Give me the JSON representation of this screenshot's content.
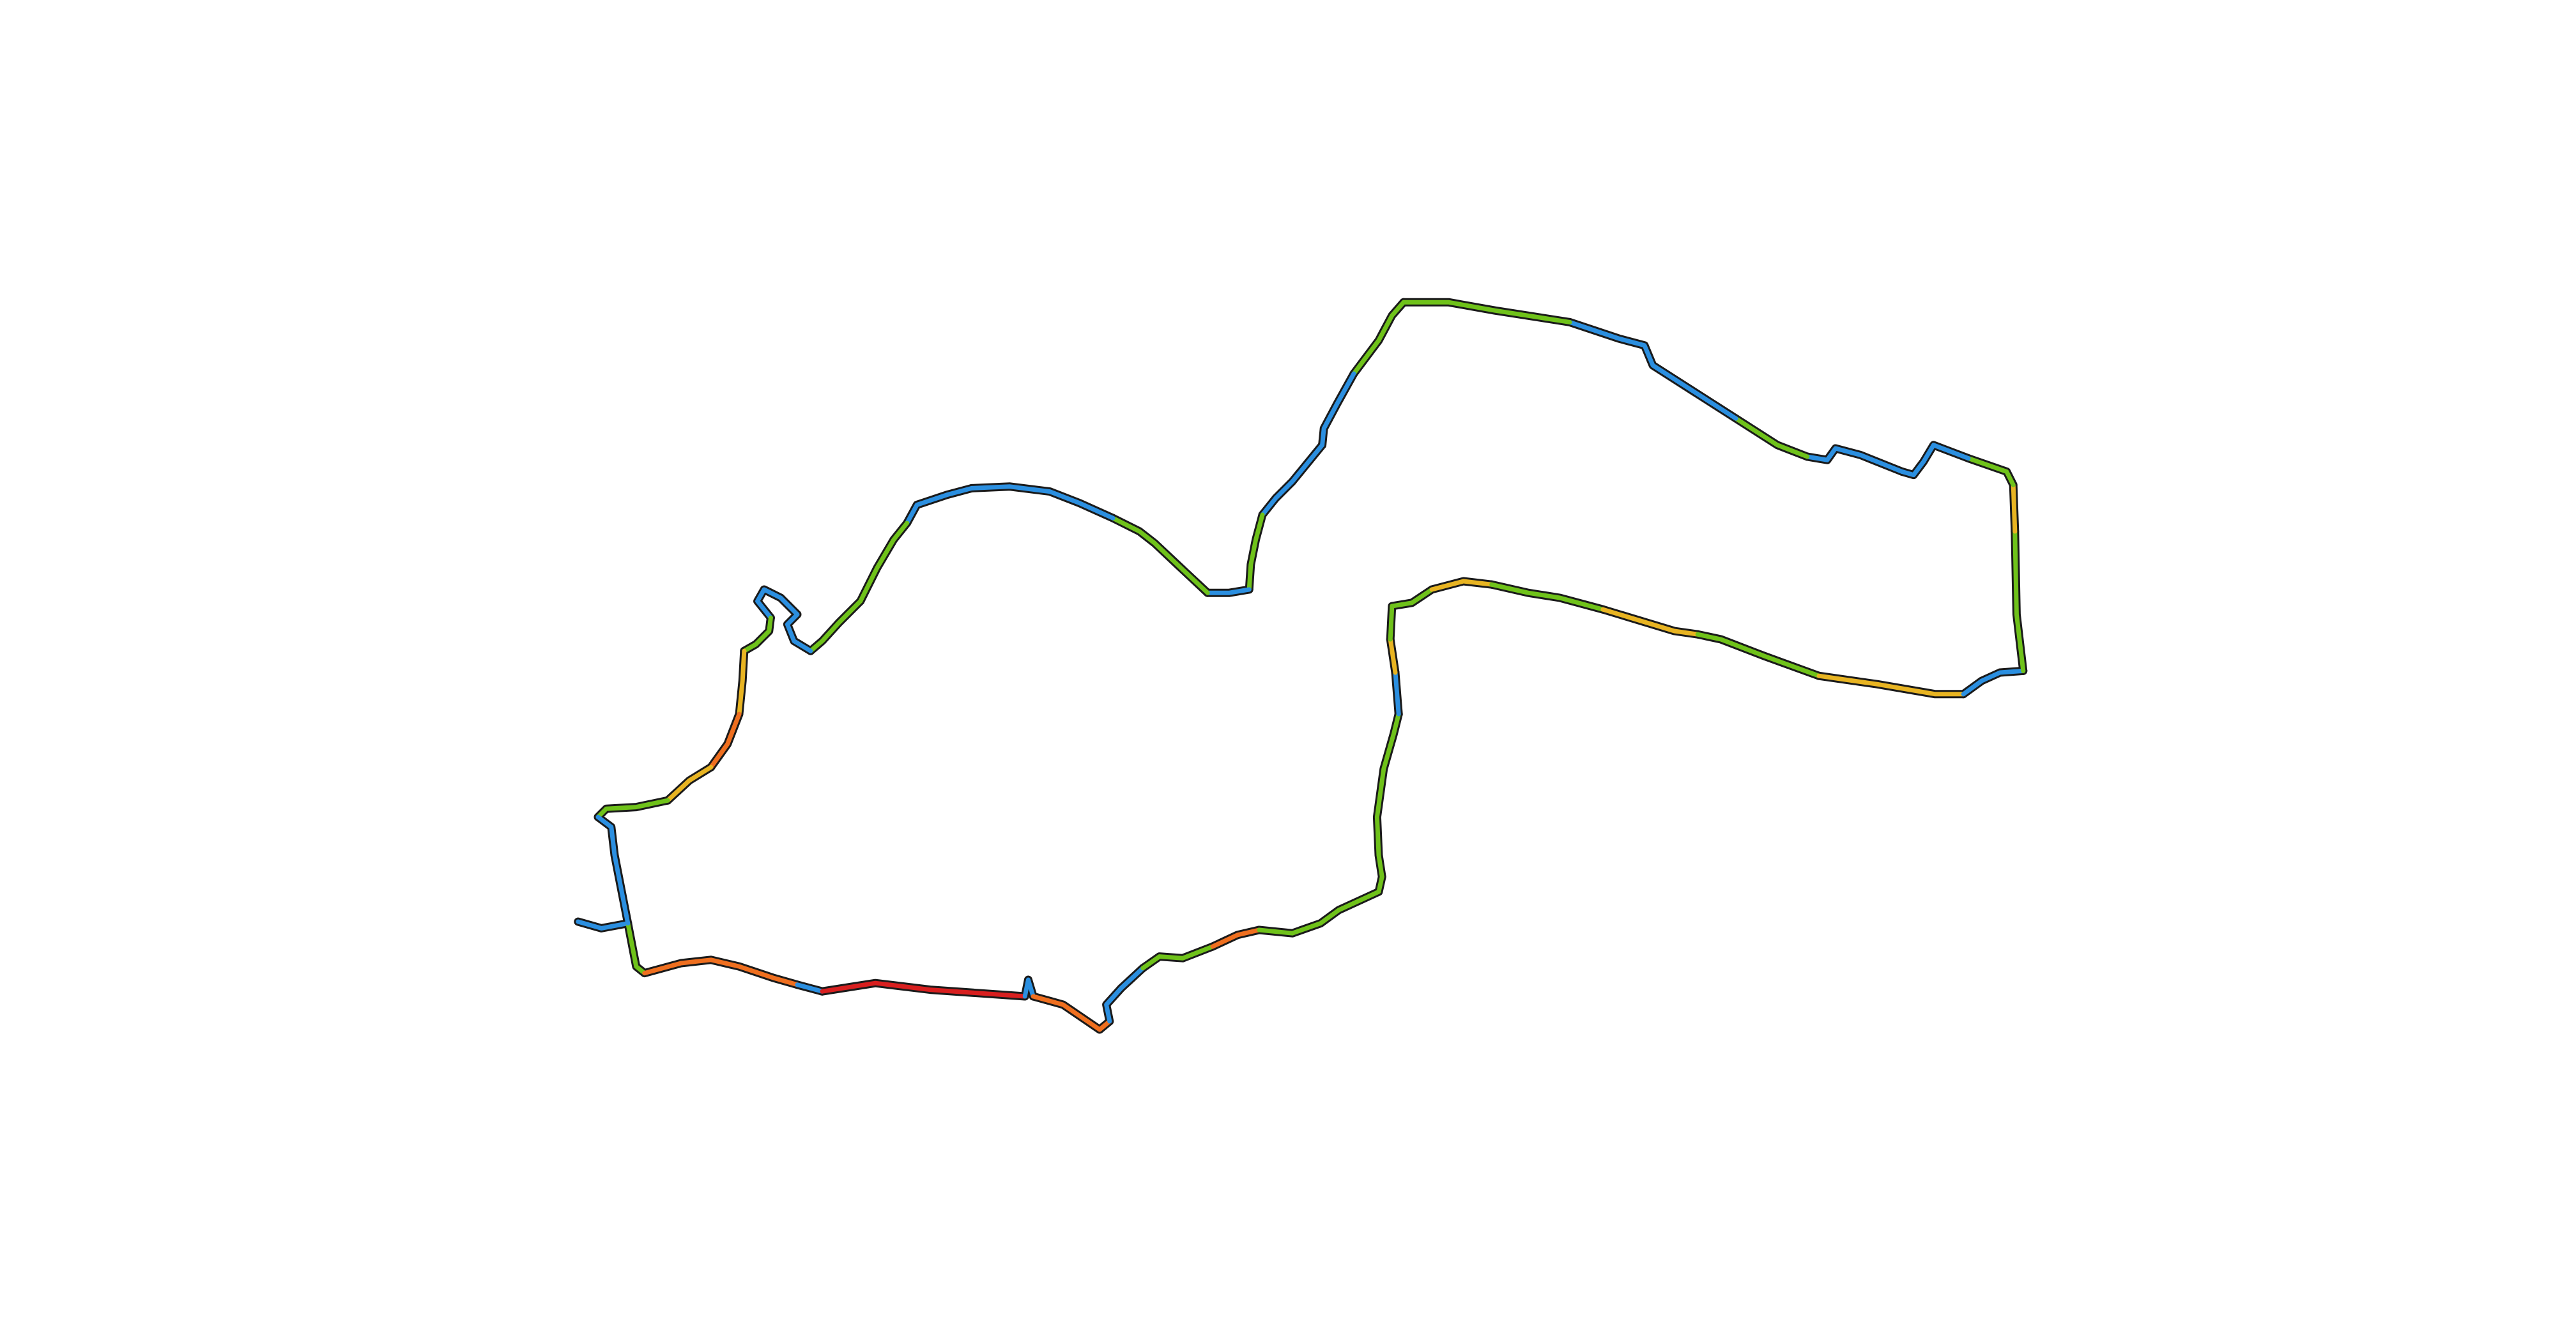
{
  "map": {
    "background": "#ffffff",
    "outline_color": "#1a1a1a",
    "route_colors": {
      "slow": "#2b8fe0",
      "medium": "#6fc21a",
      "moderate": "#e8b422",
      "fast": "#ef6f1f",
      "fastest": "#d81f1f"
    },
    "legend": [],
    "labels": []
  }
}
